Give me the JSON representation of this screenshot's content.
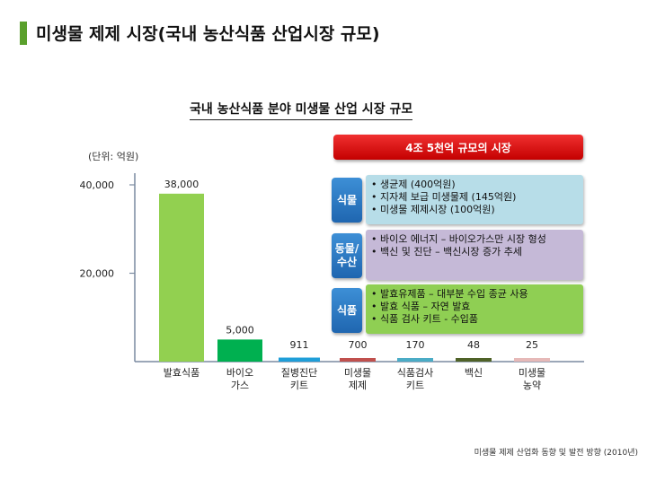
{
  "page": {
    "title": "미생물 제제 시장(국내 농산식품 산업시장 규모)",
    "source": "미생물 제제 산업화 동향 및 발전 방향 (2010년)"
  },
  "chart_data": {
    "type": "bar",
    "title": "국내 농산식품 분야 미생물 산업 시장 규모",
    "unit": "(단위: 억원)",
    "categories": [
      "발효식품",
      "바이오\n가스",
      "질병진단\n키트",
      "미생물\n제제",
      "식품검사\n키트",
      "백신",
      "미생물\n농약"
    ],
    "values": [
      38000,
      5000,
      911,
      700,
      170,
      48,
      25
    ],
    "value_labels": [
      "38,000",
      "5,000",
      "911",
      "700",
      "170",
      "48",
      "25"
    ],
    "bar_colors": [
      "#92d050",
      "#00b050",
      "#1f9ed8",
      "#c0504d",
      "#4bacc6",
      "#4f6228",
      "#e6b9b8"
    ],
    "yticks": [
      20000,
      40000
    ],
    "ytick_labels": [
      "20,000",
      "40,000"
    ],
    "ylim": [
      0,
      40000
    ],
    "grid": false
  },
  "panel": {
    "highlight": "4조 5천억 규모의 시장",
    "groups": [
      {
        "tag": "식물",
        "items": [
          "• 생균제 (400억원)",
          "• 지자체 보급 미생물제 (145억원)",
          "• 미생물 제제시장 (100억원)"
        ]
      },
      {
        "tag": "동물/\n수산",
        "items": [
          "• 바이오 에너지 – 바이오가스만 시장 형성",
          "• 백신 및 진단 – 백신시장 증가 추세"
        ]
      },
      {
        "tag": "식품",
        "items": [
          "• 발효유제품 – 대부분 수입 종균 사용",
          "• 발효 식품 – 자연 발효",
          "• 식품 검사 키트 - 수입품"
        ]
      }
    ]
  }
}
